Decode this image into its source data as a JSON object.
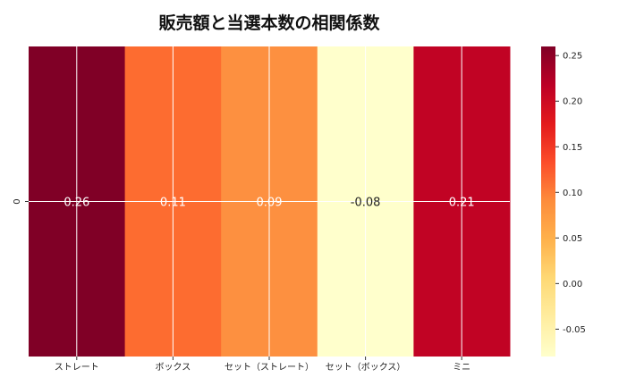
{
  "chart_data": {
    "type": "heatmap",
    "title": "販売額と当選本数の相関係数",
    "categories": [
      "ストレート",
      "ボックス",
      "セット（ストレート）",
      "セット（ボックス）",
      "ミニ"
    ],
    "rows": [
      "0"
    ],
    "values": [
      [
        0.26,
        0.11,
        0.09,
        -0.08,
        0.21
      ]
    ],
    "cell_labels": [
      "0.26",
      "0.11",
      "0.09",
      "-0.08",
      "0.21"
    ],
    "colorbar": {
      "range": [
        -0.08,
        0.26
      ],
      "ticks": [
        "-0.05",
        "0.00",
        "0.05",
        "0.10",
        "0.15",
        "0.20",
        "0.25"
      ],
      "colormap": "YlOrRd"
    },
    "grid": true,
    "colors": {
      "cells": [
        "#800026",
        "#fd6c30",
        "#fd9040",
        "#ffffcc",
        "#c10324"
      ],
      "cell_text_light": "#ffffff",
      "cell_text_dark": "#222222",
      "grid": "#ffffff"
    }
  }
}
